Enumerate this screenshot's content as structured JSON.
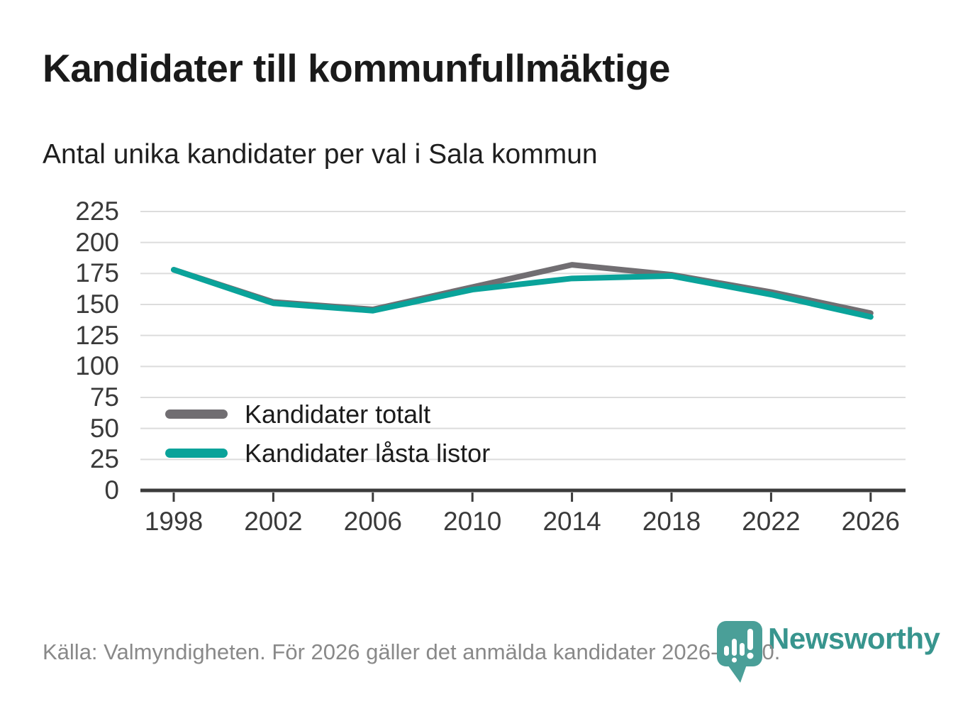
{
  "header": {
    "title": "Kandidater till kommunfullmäktige",
    "subtitle": "Antal unika kandidater per val i Sala kommun"
  },
  "footer": {
    "source": "Källa: Valmyndigheten. För 2026 gäller det anmälda kandidater 2026-04-10."
  },
  "logo": {
    "wordmark": "Newsworthy",
    "brand_color": "#4a9f98",
    "wordmark_color": "#38958e"
  },
  "chart_data": {
    "type": "line",
    "categories": [
      "1998",
      "2002",
      "2006",
      "2010",
      "2014",
      "2018",
      "2022",
      "2026"
    ],
    "series": [
      {
        "name": "Kandidater totalt",
        "color": "#716e72",
        "values": [
          178,
          152,
          146,
          164,
          182,
          174,
          160,
          143
        ]
      },
      {
        "name": "Kandidater låsta listor",
        "color": "#0aa39a",
        "values": [
          178,
          151,
          145,
          162,
          171,
          173,
          158,
          140
        ]
      }
    ],
    "ylim": [
      0,
      225
    ],
    "y_ticks": [
      0,
      25,
      50,
      75,
      100,
      125,
      150,
      175,
      200,
      225
    ],
    "grid": true,
    "grid_color": "#dcdcdc",
    "axis_color": "#3b3b3b",
    "legend_position": "inside-left",
    "xlabel": "",
    "ylabel": ""
  }
}
